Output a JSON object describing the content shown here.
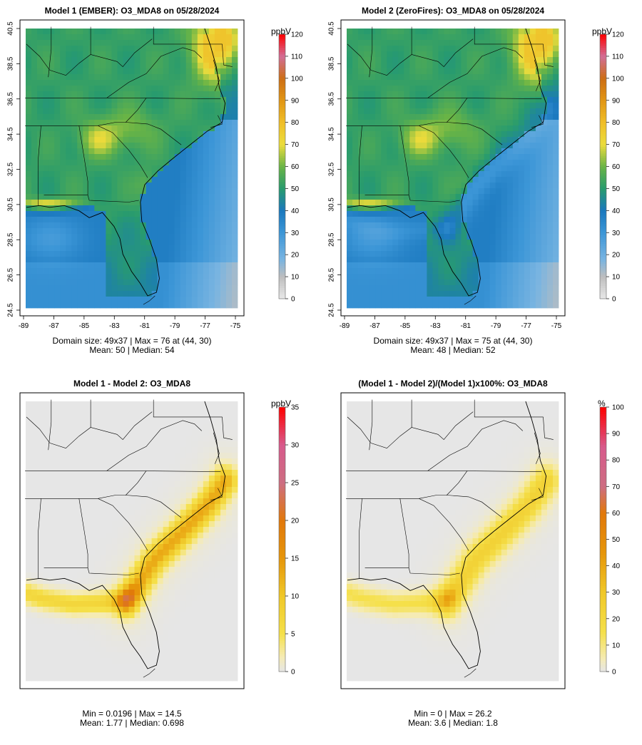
{
  "panels": [
    {
      "title": "Model 1 (EMBER): O3_MDA8 on 05/28/2024",
      "unit": "ppbV",
      "scale": "o3",
      "show_axes": true,
      "line1": "Domain size: 49x37 | Max = 76 at (44, 30)",
      "line2": "Mean: 50 |  Median: 54"
    },
    {
      "title": "Model 2 (ZeroFires): O3_MDA8 on 05/28/2024",
      "unit": "ppbV",
      "scale": "o3",
      "show_axes": true,
      "line1": "Domain size: 49x37 | Max = 75 at (44, 30)",
      "line2": "Mean: 48 |  Median: 52"
    },
    {
      "title": "Model 1 - Model 2: O3_MDA8",
      "unit": "ppbV",
      "scale": "diff",
      "show_axes": false,
      "line1": "Min = 0.0196 | Max = 14.5",
      "line2": "Mean: 1.77 |  Median: 0.698"
    },
    {
      "title": "(Model 1 - Model 2)/(Model 1)x100%: O3_MDA8",
      "unit": "%",
      "scale": "pct",
      "show_axes": false,
      "line1": "Min = 0 | Max = 26.2",
      "line2": "Mean: 3.6 |  Median: 1.8"
    }
  ],
  "axes": {
    "x_ticks": [
      "-89",
      "-87",
      "-85",
      "-83",
      "-81",
      "-79",
      "-77",
      "-75"
    ],
    "y_ticks": [
      "24.5",
      "26.5",
      "28.5",
      "30.5",
      "32.5",
      "34.5",
      "36.5",
      "38.5",
      "40.5"
    ]
  },
  "colorbars": {
    "o3": [
      "0",
      "10",
      "20",
      "30",
      "40",
      "50",
      "60",
      "70",
      "80",
      "90",
      "100",
      "110",
      "120"
    ],
    "diff": [
      "0",
      "5",
      "10",
      "15",
      "20",
      "25",
      "30",
      "35"
    ],
    "pct": [
      "0",
      "10",
      "20",
      "30",
      "40",
      "50",
      "60",
      "70",
      "80",
      "90",
      "100"
    ]
  },
  "colors": {
    "background": "#ffffff",
    "grid_low": "#e6e6e6",
    "yellow": "#f5e04a",
    "orange": "#e0900a",
    "red": "#ff0000",
    "green": "#2e9e5a",
    "blue": "#1a78c0"
  }
}
